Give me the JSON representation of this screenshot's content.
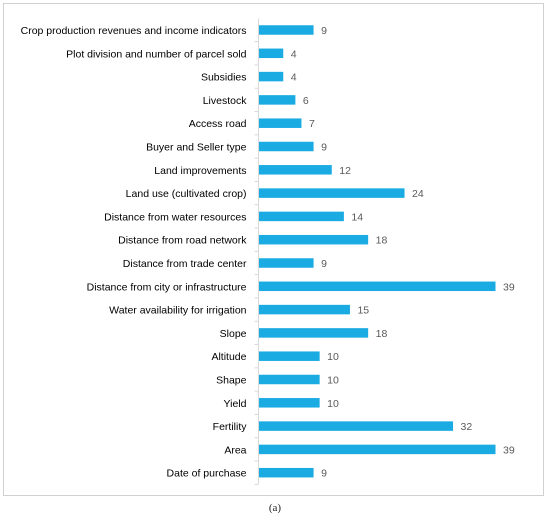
{
  "chart_data": {
    "type": "bar",
    "orientation": "horizontal",
    "categories": [
      "Crop production revenues and income indicators",
      "Plot division and number of parcel sold",
      "Subsidies",
      "Livestock",
      "Access road",
      "Buyer and Seller type",
      "Land improvements",
      "Land use (cultivated crop)",
      "Distance from water resources",
      "Distance from road network",
      "Distance from trade center",
      "Distance from city or infrastructure",
      "Water availability for irrigation",
      "Slope",
      "Altitude",
      "Shape",
      "Yield",
      "Fertility",
      "Area",
      "Date of purchase"
    ],
    "values": [
      9,
      4,
      4,
      6,
      7,
      9,
      12,
      24,
      14,
      18,
      9,
      39,
      15,
      18,
      10,
      10,
      10,
      32,
      39,
      9
    ],
    "data_labels": true,
    "xlim": [
      0,
      39
    ],
    "bar_color": "#1aabe3",
    "axis_color": "#d9d9d9",
    "label_color": "#000000",
    "value_label_color": "#595959",
    "grid": false,
    "legend": "none"
  },
  "caption": "(a)"
}
